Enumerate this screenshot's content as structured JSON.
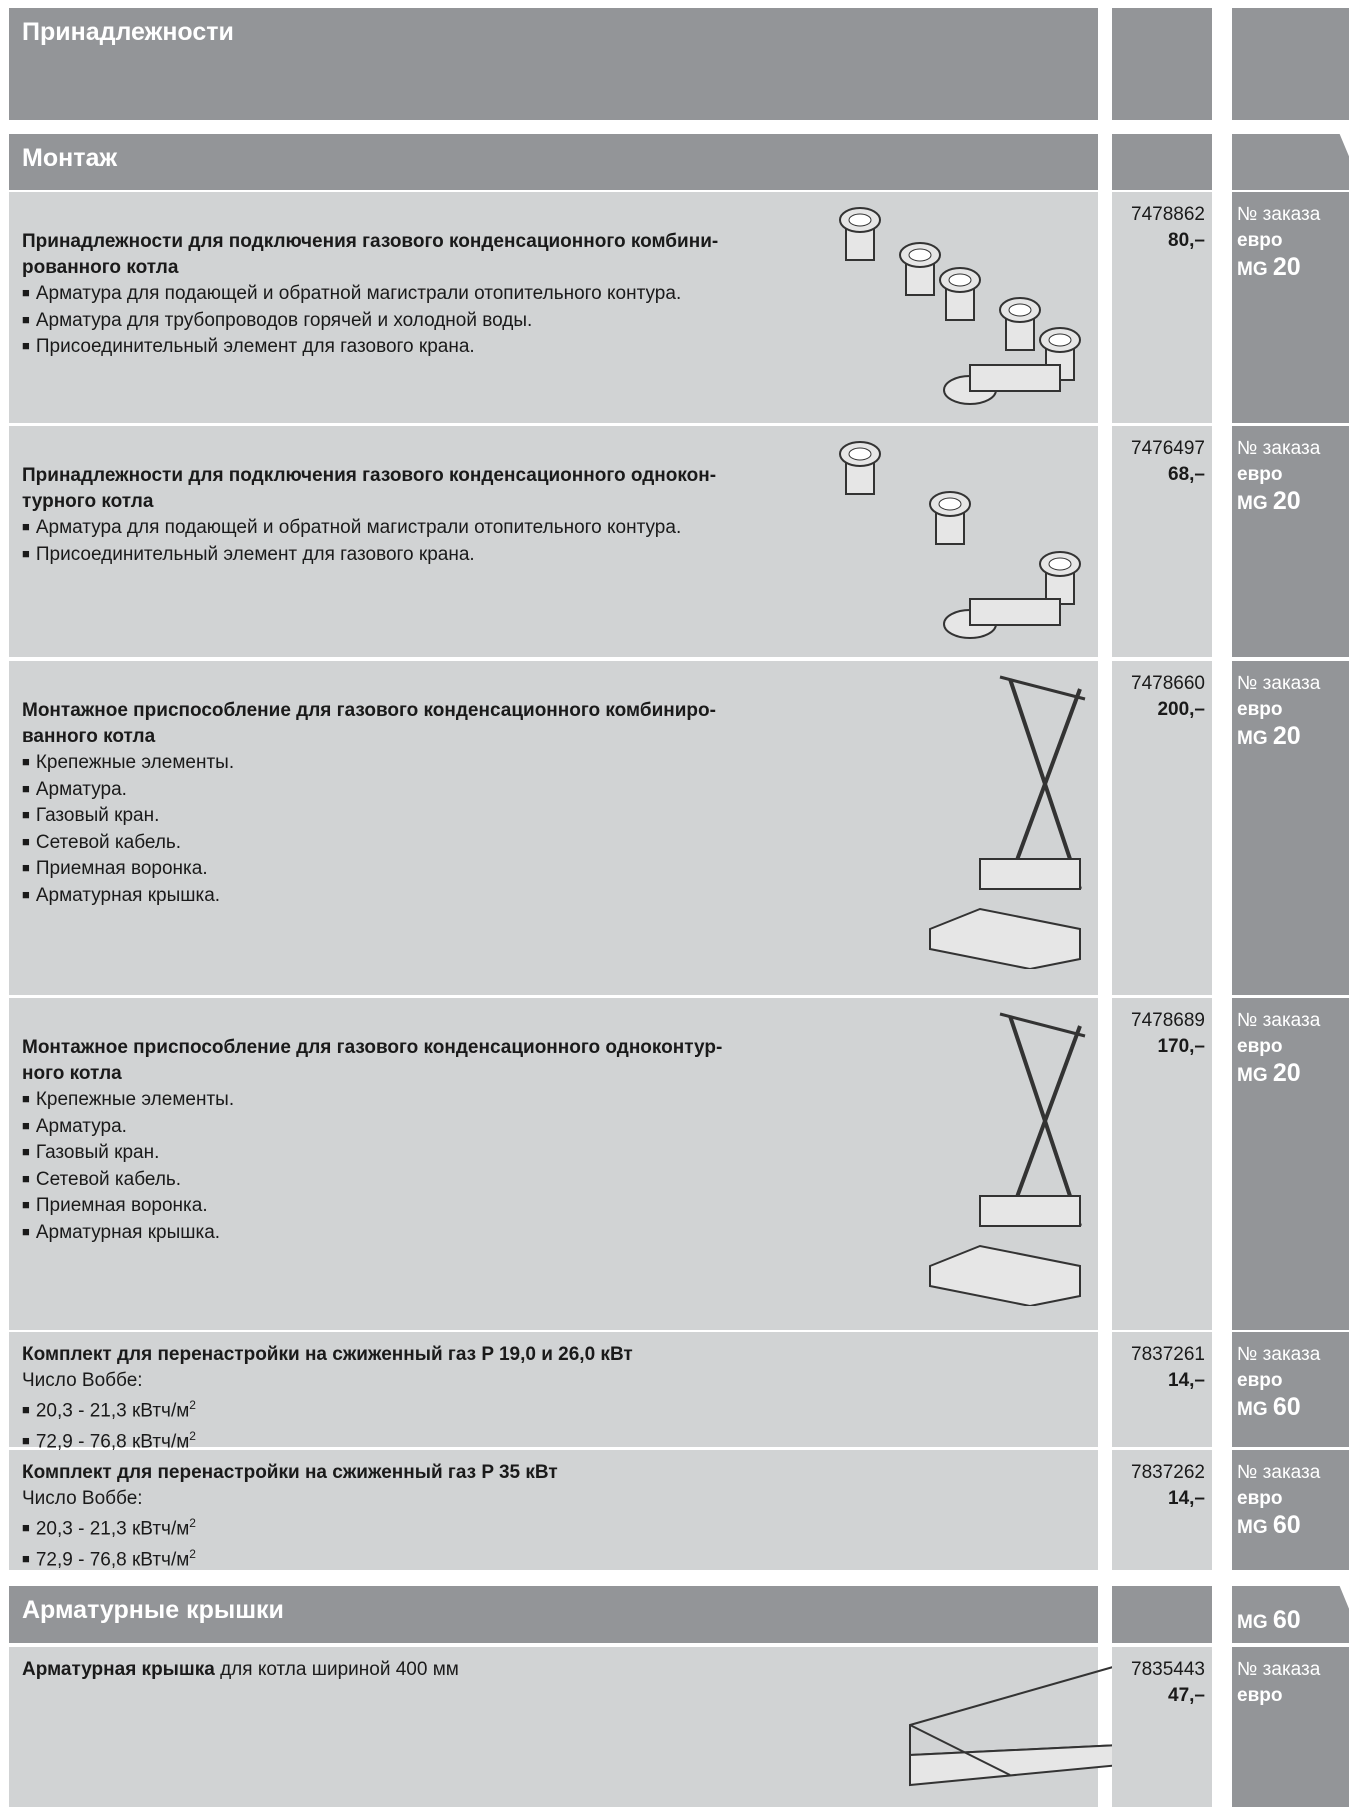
{
  "header": {
    "title": "Принадлежности"
  },
  "sections": [
    {
      "title": "Монтаж",
      "items": [
        {
          "title": "Принадлежности для подключения газового конденсационного комбини-\nрованного котла",
          "bullets": [
            {
              "text": "Арматура для подающей и обратной магистрали отопительного контура."
            },
            {
              "text": "Арматура для трубопроводов горячей и холодной воды."
            },
            {
              "text": "Присоединительный элемент для газового крана."
            }
          ],
          "order_no": "7478862",
          "price": "80,–",
          "order_label": "№ заказа",
          "currency": "евро",
          "mg_label": "MG",
          "mg": "20"
        },
        {
          "title": "Принадлежности для подключения газового конденсационного однокон-\nтурного котла",
          "bullets": [
            {
              "text": "Арматура для подающей и обратной магистрали отопительного контура."
            },
            {
              "text": "Присоединительный элемент для газового крана."
            }
          ],
          "order_no": "7476497",
          "price": "68,–",
          "order_label": "№ заказа",
          "currency": "евро",
          "mg_label": "MG",
          "mg": "20"
        },
        {
          "title": "Монтажное приспособление для газового конденсационного комбиниро-\nванного котла",
          "bullets": [
            {
              "text": "Крепежные элементы."
            },
            {
              "text": "Арматура."
            },
            {
              "text": "Газовый кран."
            },
            {
              "text": "Сетевой кабель."
            },
            {
              "text": "Приемная воронка."
            },
            {
              "text": "Арматурная крышка."
            }
          ],
          "order_no": "7478660",
          "price": "200,–",
          "order_label": "№ заказа",
          "currency": "евро",
          "mg_label": "MG",
          "mg": "20"
        },
        {
          "title": "Монтажное приспособление для газового конденсационного одноконтур-\nного котла",
          "bullets": [
            {
              "text": "Крепежные элементы."
            },
            {
              "text": "Арматура."
            },
            {
              "text": "Газовый кран."
            },
            {
              "text": "Сетевой кабель."
            },
            {
              "text": "Приемная воронка."
            },
            {
              "text": "Арматурная крышка."
            }
          ],
          "order_no": "7478689",
          "price": "170,–",
          "order_label": "№ заказа",
          "currency": "евро",
          "mg_label": "MG",
          "mg": "20"
        },
        {
          "title": "Комплект для перенастройки на сжиженный газ P 19,0 и 26,0 кВт",
          "lines": [
            "Число Воббе:"
          ],
          "bullets": [
            {
              "text": "20,3 - 21,3 кВтч/м",
              "sup": "2"
            },
            {
              "text": "72,9 - 76,8 кВтч/м",
              "sup": "2"
            }
          ],
          "order_no": "7837261",
          "price": "14,–",
          "order_label": "№ заказа",
          "currency": "евро",
          "mg_label": "MG",
          "mg": "60"
        },
        {
          "title": "Комплект для перенастройки на сжиженный газ P 35 кВт",
          "lines": [
            "Число Воббе:"
          ],
          "bullets": [
            {
              "text": "20,3 - 21,3 кВтч/м",
              "sup": "2"
            },
            {
              "text": "72,9 - 76,8 кВтч/м",
              "sup": "2"
            }
          ],
          "order_no": "7837262",
          "price": "14,–",
          "order_label": "№ заказа",
          "currency": "евро",
          "mg_label": "MG",
          "mg": "60"
        }
      ]
    },
    {
      "title": "Арматурные крышки",
      "mg_label": "MG",
      "mg": "60",
      "items": [
        {
          "title": "Арматурная крышка",
          "title_rest": " для котла шириной 400 мм",
          "order_no": "7835443",
          "price": "47,–",
          "order_label": "№ заказа",
          "currency": "евро"
        }
      ]
    }
  ]
}
